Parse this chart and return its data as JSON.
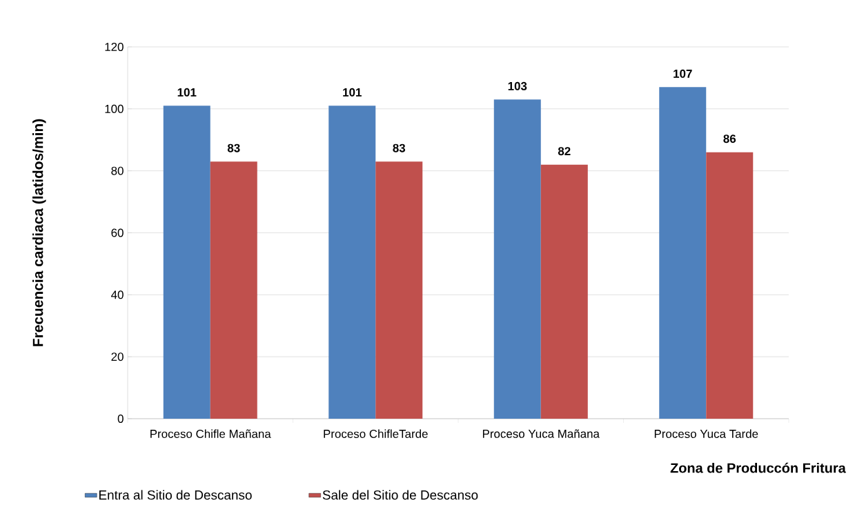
{
  "chart_data": {
    "type": "bar",
    "ylabel": "Frecuencia cardiaca (latidos/min)",
    "xlabel": "Zona de Produccón Fritura",
    "categories": [
      "Proceso Chifle Mañana",
      "Proceso ChifleTarde",
      "Proceso Yuca Mañana",
      "Proceso Yuca Tarde"
    ],
    "series": [
      {
        "name": "Entra al Sitio de Descanso",
        "color": "#4f81bd",
        "values": [
          101,
          101,
          103,
          107
        ]
      },
      {
        "name": "Sale del Sitio de Descanso",
        "color": "#c0504d",
        "values": [
          83,
          83,
          82,
          86
        ]
      }
    ],
    "ylim": [
      0,
      120
    ],
    "yticks": [
      0,
      20,
      40,
      60,
      80,
      100,
      120
    ],
    "grid": "y",
    "legend": "bottom",
    "data_labels": true
  }
}
